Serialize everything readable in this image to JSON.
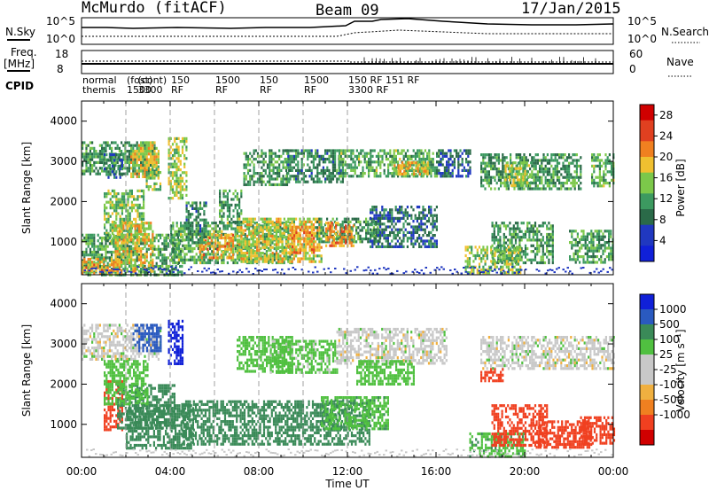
{
  "header": {
    "station": "McMurdo (fitACF)",
    "beam": "Beam 09",
    "date": "17/Jan/2015"
  },
  "top_panels": {
    "nsky_label": "N.Sky",
    "nsearch_label": "N.Search",
    "nsky_ticks": [
      "10^5",
      "10^0"
    ],
    "nsearch_ticks": [
      "10^5",
      "10^0"
    ],
    "freq_label_1": "Freq.",
    "freq_label_2": "[MHz]",
    "freq_ticks": [
      "18",
      "8"
    ],
    "nave_label": "Nave",
    "nave_ticks": [
      "60",
      "0"
    ],
    "cpid_label": "CPID"
  },
  "cpid_labels": [
    {
      "time_h": 0.0,
      "lines": [
        "normal",
        "themis"
      ]
    },
    {
      "time_h": 2.0,
      "lines": [
        "(fost)",
        "1500"
      ]
    },
    {
      "time_h": 2.5,
      "lines": [
        "(cont)",
        "3300"
      ]
    },
    {
      "time_h": 4.0,
      "lines": [
        "150",
        "RF"
      ]
    },
    {
      "time_h": 6.0,
      "lines": [
        "1500",
        "RF"
      ]
    },
    {
      "time_h": 8.0,
      "lines": [
        "150",
        "RF"
      ]
    },
    {
      "time_h": 10.0,
      "lines": [
        "1500",
        "RF"
      ]
    },
    {
      "time_h": 12.0,
      "lines": [
        "150 RF 151 RF",
        "3300 RF"
      ]
    }
  ],
  "panels": {
    "power": {
      "ylabel": "Slant Range [km]",
      "colorbar_label": "Power [dB]",
      "colorbar_ticks": [
        "28",
        "24",
        "20",
        "16",
        "12",
        "8",
        "4"
      ]
    },
    "velocity": {
      "ylabel": "Slant Range [km]",
      "colorbar_label": "Velocity [m s⁻¹]",
      "colorbar_ticks": [
        "1000",
        "500",
        "100",
        "25",
        "-25",
        "-100",
        "-500",
        "-1000"
      ]
    }
  },
  "x_axis": {
    "label": "Time UT",
    "tick_labels": [
      "00:00",
      "04:00",
      "08:00",
      "12:00",
      "16:00",
      "20:00",
      "00:00"
    ]
  },
  "chart_data": [
    {
      "type": "heatmap",
      "title": "",
      "xlabel": "Time UT",
      "ylabel": "Slant Range [km]",
      "x_ticks": [
        "00:00",
        "04:00",
        "08:00",
        "12:00",
        "16:00",
        "20:00",
        "00:00"
      ],
      "xlim_hours": [
        0,
        24
      ],
      "ylim_km": [
        180,
        4500
      ],
      "y_ticks": [
        1000,
        2000,
        3000,
        4000
      ],
      "colorbar": {
        "label": "Power [dB]",
        "ticks": [
          4,
          8,
          12,
          16,
          20,
          24,
          28
        ],
        "range": [
          0,
          30
        ]
      },
      "series": [
        {
          "t0": 0.0,
          "t1": 3.3,
          "r0": 2700,
          "r1": 3500,
          "value": 11
        },
        {
          "t0": 2.2,
          "t1": 3.5,
          "r0": 2600,
          "r1": 3500,
          "value": 18
        },
        {
          "t0": 1.0,
          "t1": 1.8,
          "r0": 2600,
          "r1": 3200,
          "value": 8
        },
        {
          "t0": 3.9,
          "t1": 4.7,
          "r0": 2100,
          "r1": 3600,
          "value": 16
        },
        {
          "t0": 2.9,
          "t1": 3.6,
          "r0": 2300,
          "r1": 2900,
          "value": 14
        },
        {
          "t0": 1.0,
          "t1": 2.8,
          "r0": 1000,
          "r1": 2300,
          "value": 14
        },
        {
          "t0": 0.0,
          "t1": 4.5,
          "r0": 200,
          "r1": 1200,
          "value": 12
        },
        {
          "t0": 1.5,
          "t1": 3.2,
          "r0": 300,
          "r1": 1500,
          "value": 18
        },
        {
          "t0": 0.0,
          "t1": 1.8,
          "r0": 200,
          "r1": 600,
          "value": 20
        },
        {
          "t0": 4.0,
          "t1": 9.5,
          "r0": 500,
          "r1": 1500,
          "value": 13
        },
        {
          "t0": 5.3,
          "t1": 6.8,
          "r0": 600,
          "r1": 1200,
          "value": 20
        },
        {
          "t0": 4.7,
          "t1": 5.6,
          "r0": 1000,
          "r1": 2000,
          "value": 10
        },
        {
          "t0": 6.2,
          "t1": 7.2,
          "r0": 1500,
          "r1": 2300,
          "value": 12
        },
        {
          "t0": 7.3,
          "t1": 9.4,
          "r0": 2400,
          "r1": 3300,
          "value": 11
        },
        {
          "t0": 7.0,
          "t1": 10.8,
          "r0": 500,
          "r1": 1600,
          "value": 17
        },
        {
          "t0": 9.3,
          "t1": 10.5,
          "r0": 700,
          "r1": 1400,
          "value": 21
        },
        {
          "t0": 10.6,
          "t1": 13.5,
          "r0": 1000,
          "r1": 1600,
          "value": 11
        },
        {
          "t0": 11.0,
          "t1": 12.3,
          "r0": 900,
          "r1": 1500,
          "value": 21
        },
        {
          "t0": 9.2,
          "t1": 11.8,
          "r0": 2500,
          "r1": 3300,
          "value": 10
        },
        {
          "t0": 11.6,
          "t1": 16.2,
          "r0": 2600,
          "r1": 3300,
          "value": 13
        },
        {
          "t0": 14.0,
          "t1": 15.6,
          "r0": 2700,
          "r1": 3000,
          "value": 19
        },
        {
          "t0": 13.0,
          "t1": 16.0,
          "r0": 900,
          "r1": 1900,
          "value": 8
        },
        {
          "t0": 16.0,
          "t1": 17.5,
          "r0": 2600,
          "r1": 3300,
          "value": 7
        },
        {
          "t0": 18.0,
          "t1": 22.5,
          "r0": 2300,
          "r1": 3200,
          "value": 11
        },
        {
          "t0": 19.1,
          "t1": 20.3,
          "r0": 2400,
          "r1": 3000,
          "value": 16
        },
        {
          "t0": 18.5,
          "t1": 21.3,
          "r0": 500,
          "r1": 1500,
          "value": 11
        },
        {
          "t0": 17.3,
          "t1": 19.8,
          "r0": 200,
          "r1": 900,
          "value": 15
        },
        {
          "t0": 22.0,
          "t1": 24.0,
          "r0": 500,
          "r1": 1300,
          "value": 12
        },
        {
          "t0": 23.0,
          "t1": 24.0,
          "r0": 2400,
          "r1": 3200,
          "value": 13
        }
      ]
    },
    {
      "type": "heatmap",
      "title": "",
      "xlabel": "Time UT",
      "ylabel": "Slant Range [km]",
      "x_ticks": [
        "00:00",
        "04:00",
        "08:00",
        "12:00",
        "16:00",
        "20:00",
        "00:00"
      ],
      "xlim_hours": [
        0,
        24
      ],
      "ylim_km": [
        180,
        4500
      ],
      "y_ticks": [
        1000,
        2000,
        3000,
        4000
      ],
      "colorbar": {
        "label": "Velocity [m s⁻¹]",
        "ticks": [
          1000,
          500,
          100,
          25,
          -25,
          -100,
          -500,
          -1000
        ]
      },
      "series": [
        {
          "t0": 0.0,
          "t1": 3.6,
          "r0": 2600,
          "r1": 3500,
          "value": 0
        },
        {
          "t0": 2.3,
          "t1": 3.6,
          "r0": 2800,
          "r1": 3500,
          "value": 700
        },
        {
          "t0": 3.9,
          "t1": 4.6,
          "r0": 2500,
          "r1": 3600,
          "value": 900
        },
        {
          "t0": 1.0,
          "t1": 1.8,
          "r0": 900,
          "r1": 2100,
          "value": -300
        },
        {
          "t0": 1.6,
          "t1": 4.2,
          "r0": 900,
          "r1": 2000,
          "value": 200
        },
        {
          "t0": 1.0,
          "t1": 3.0,
          "r0": 1500,
          "r1": 2600,
          "value": 60
        },
        {
          "t0": 2.0,
          "t1": 5.0,
          "r0": 400,
          "r1": 1500,
          "value": 200
        },
        {
          "t0": 4.5,
          "t1": 13.0,
          "r0": 500,
          "r1": 1600,
          "value": 200
        },
        {
          "t0": 7.0,
          "t1": 9.5,
          "r0": 2300,
          "r1": 3200,
          "value": 70
        },
        {
          "t0": 10.8,
          "t1": 13.8,
          "r0": 900,
          "r1": 1700,
          "value": 80
        },
        {
          "t0": 8.5,
          "t1": 11.5,
          "r0": 2300,
          "r1": 3100,
          "value": 50
        },
        {
          "t0": 11.5,
          "t1": 16.5,
          "r0": 2500,
          "r1": 3400,
          "value": 0
        },
        {
          "t0": 12.4,
          "t1": 15.0,
          "r0": 2000,
          "r1": 2600,
          "value": 60
        },
        {
          "t0": 18.0,
          "t1": 24.0,
          "r0": 2400,
          "r1": 3200,
          "value": 0
        },
        {
          "t0": 17.5,
          "t1": 20.0,
          "r0": 200,
          "r1": 800,
          "value": 80
        },
        {
          "t0": 18.5,
          "t1": 21.0,
          "r0": 500,
          "r1": 1500,
          "value": -300
        },
        {
          "t0": 20.5,
          "t1": 23.0,
          "r0": 400,
          "r1": 1100,
          "value": -250
        },
        {
          "t0": 22.5,
          "t1": 24.0,
          "r0": 500,
          "r1": 1200,
          "value": -200
        },
        {
          "t0": 18.0,
          "t1": 19.0,
          "r0": 2100,
          "r1": 2400,
          "value": -300
        }
      ]
    }
  ],
  "colors": {
    "power_scale": [
      "#1020d8",
      "#2038c0",
      "#2a6a48",
      "#3c9a60",
      "#7cc84a",
      "#f0c030",
      "#f08020",
      "#e04020",
      "#d00000"
    ],
    "velocity_scale": [
      "#d00000",
      "#f04020",
      "#f08020",
      "#f0b040",
      "#c8c8c8",
      "#c8c8c8",
      "#50c040",
      "#3a8a58",
      "#2a5ac0",
      "#1020d8"
    ]
  }
}
